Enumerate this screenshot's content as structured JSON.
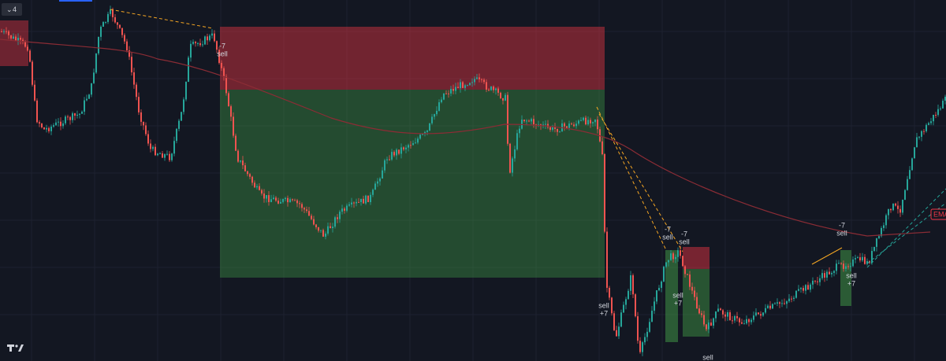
{
  "toolbar": {
    "interval_badge": "4"
  },
  "trade_labels": [
    {
      "lines": [
        "-7",
        "sell"
      ]
    },
    {
      "lines": [
        "sell",
        "+7"
      ]
    },
    {
      "lines": [
        "-7",
        "sell"
      ]
    },
    {
      "lines": [
        "-7",
        "sell"
      ]
    },
    {
      "lines": [
        "sell",
        "+7"
      ]
    },
    {
      "lines": [
        "sell"
      ]
    },
    {
      "lines": [
        "-7",
        "sell"
      ]
    },
    {
      "lines": [
        "sell",
        "+7"
      ]
    }
  ],
  "ema_label": "EMA"
}
